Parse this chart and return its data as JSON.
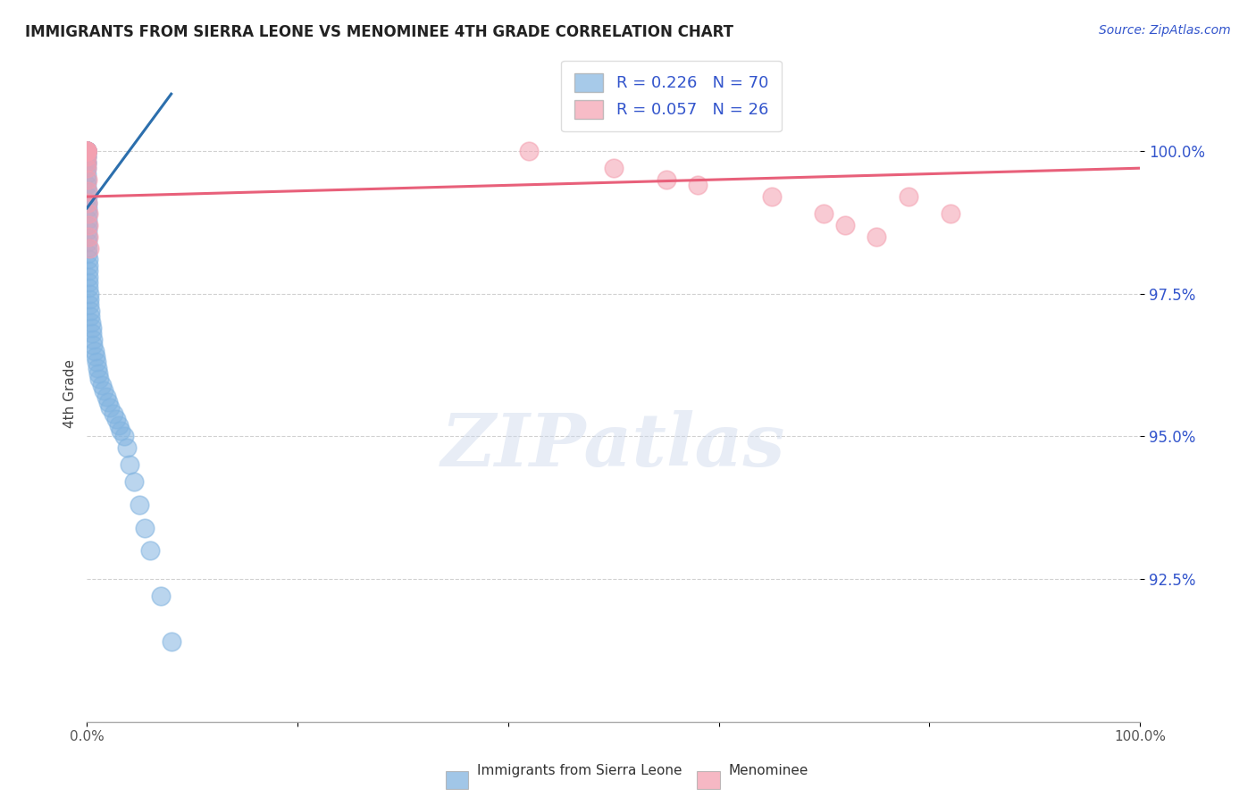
{
  "title": "IMMIGRANTS FROM SIERRA LEONE VS MENOMINEE 4TH GRADE CORRELATION CHART",
  "source_text": "Source: ZipAtlas.com",
  "ylabel": "4th Grade",
  "xlim": [
    0.0,
    100.0
  ],
  "ylim": [
    90.0,
    101.5
  ],
  "yticks": [
    92.5,
    95.0,
    97.5,
    100.0
  ],
  "ytick_labels": [
    "92.5%",
    "95.0%",
    "97.5%",
    "100.0%"
  ],
  "xtick_labels": [
    "0.0%",
    "",
    "",
    "",
    "",
    "100.0%"
  ],
  "xticks": [
    0.0,
    20.0,
    40.0,
    60.0,
    80.0,
    100.0
  ],
  "blue_R": 0.226,
  "blue_N": 70,
  "pink_R": 0.057,
  "pink_N": 26,
  "blue_color": "#82b4e0",
  "pink_color": "#f4a0b0",
  "blue_line_color": "#2c6fad",
  "pink_line_color": "#e8607a",
  "blue_scatter_x": [
    0.0,
    0.0,
    0.0,
    0.0,
    0.0,
    0.0,
    0.0,
    0.0,
    0.0,
    0.0,
    0.0,
    0.0,
    0.0,
    0.0,
    0.0,
    0.0,
    0.0,
    0.0,
    0.02,
    0.02,
    0.03,
    0.03,
    0.03,
    0.04,
    0.05,
    0.05,
    0.06,
    0.07,
    0.08,
    0.09,
    0.1,
    0.1,
    0.12,
    0.13,
    0.15,
    0.18,
    0.2,
    0.22,
    0.25,
    0.3,
    0.35,
    0.4,
    0.45,
    0.5,
    0.55,
    0.6,
    0.7,
    0.8,
    0.9,
    1.0,
    1.1,
    1.2,
    1.4,
    1.6,
    1.8,
    2.0,
    2.2,
    2.5,
    2.8,
    3.0,
    3.2,
    3.5,
    3.8,
    4.0,
    4.5,
    5.0,
    5.5,
    6.0,
    7.0,
    8.0
  ],
  "blue_scatter_y": [
    100.0,
    100.0,
    100.0,
    100.0,
    100.0,
    100.0,
    100.0,
    100.0,
    100.0,
    100.0,
    99.9,
    99.9,
    99.8,
    99.8,
    99.7,
    99.6,
    99.5,
    99.4,
    99.3,
    99.2,
    99.1,
    99.0,
    98.9,
    98.8,
    98.7,
    98.6,
    98.5,
    98.4,
    98.3,
    98.2,
    98.1,
    98.0,
    97.9,
    97.8,
    97.7,
    97.6,
    97.5,
    97.4,
    97.3,
    97.2,
    97.1,
    97.0,
    96.9,
    96.8,
    96.7,
    96.6,
    96.5,
    96.4,
    96.3,
    96.2,
    96.1,
    96.0,
    95.9,
    95.8,
    95.7,
    95.6,
    95.5,
    95.4,
    95.3,
    95.2,
    95.1,
    95.0,
    94.8,
    94.5,
    94.2,
    93.8,
    93.4,
    93.0,
    92.2,
    91.4
  ],
  "pink_scatter_x": [
    0.0,
    0.0,
    0.0,
    0.0,
    0.0,
    0.0,
    0.0,
    0.0,
    0.0,
    0.05,
    0.05,
    0.08,
    0.1,
    0.12,
    0.15,
    0.2,
    42.0,
    50.0,
    55.0,
    58.0,
    65.0,
    70.0,
    72.0,
    75.0,
    78.0,
    82.0
  ],
  "pink_scatter_y": [
    100.0,
    100.0,
    100.0,
    100.0,
    100.0,
    100.0,
    99.9,
    99.8,
    99.7,
    99.5,
    99.3,
    99.1,
    98.9,
    98.7,
    98.5,
    98.3,
    100.0,
    99.7,
    99.5,
    99.4,
    99.2,
    98.9,
    98.7,
    98.5,
    99.2,
    98.9
  ],
  "blue_line_x": [
    0.0,
    8.0
  ],
  "blue_line_y": [
    99.0,
    101.0
  ],
  "pink_line_x": [
    0.0,
    100.0
  ],
  "pink_line_y": [
    99.2,
    99.7
  ],
  "watermark": "ZIPatlas",
  "bg_color": "#ffffff",
  "grid_color": "#cccccc",
  "legend_label_blue": "R = 0.226   N = 70",
  "legend_label_pink": "R = 0.057   N = 26",
  "bottom_label_blue": "Immigrants from Sierra Leone",
  "bottom_label_pink": "Menominee"
}
